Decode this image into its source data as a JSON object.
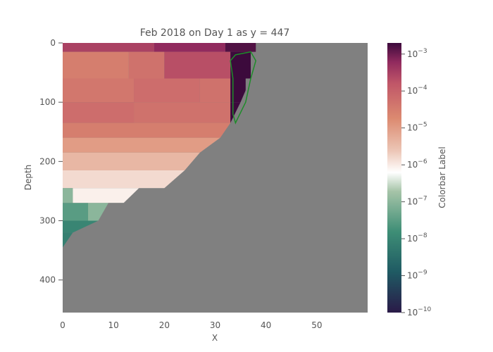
{
  "chart_data": {
    "type": "heatmap",
    "title": "Feb 2018 on Day 1 as y = 447",
    "xlabel": "X",
    "ylabel": "Depth",
    "xlim": [
      0,
      60
    ],
    "ylim": [
      455,
      0
    ],
    "x_ticks": [
      "0",
      "10",
      "20",
      "30",
      "40",
      "50"
    ],
    "y_ticks": [
      "0",
      "100",
      "200",
      "300",
      "400"
    ],
    "colorbar": {
      "label": "Colorbar Label",
      "scale": "log",
      "range": [
        1e-10,
        0.002
      ],
      "tick_exponents": [
        "-3",
        "-4",
        "-5",
        "-6",
        "-7",
        "-8",
        "-9",
        "-10"
      ],
      "tick_base": "10"
    },
    "land_color": "#808080",
    "contour_color": "#1e8c2a",
    "layers": [
      {
        "depth": [
          0,
          15
        ],
        "values": [
          {
            "x": [
              0,
              18
            ],
            "v": 0.0003
          },
          {
            "x": [
              18,
              32
            ],
            "v": 0.0006
          },
          {
            "x": [
              32,
              38
            ],
            "v": 0.0015
          }
        ]
      },
      {
        "depth": [
          15,
          60
        ],
        "values": [
          {
            "x": [
              0,
              13
            ],
            "v": 3e-05
          },
          {
            "x": [
              13,
              20
            ],
            "v": 5e-05
          },
          {
            "x": [
              20,
              33
            ],
            "v": 0.0002
          },
          {
            "x": [
              33,
              37
            ],
            "v": 0.002
          }
        ]
      },
      {
        "depth": [
          60,
          100
        ],
        "values": [
          {
            "x": [
              0,
              14
            ],
            "v": 4e-05
          },
          {
            "x": [
              14,
              27
            ],
            "v": 6e-05
          },
          {
            "x": [
              27,
              33
            ],
            "v": 5e-05
          },
          {
            "x": [
              33,
              36
            ],
            "v": 0.002
          }
        ]
      },
      {
        "depth": [
          100,
          135
        ],
        "values": [
          {
            "x": [
              0,
              14
            ],
            "v": 6e-05
          },
          {
            "x": [
              14,
              33
            ],
            "v": 5e-05
          },
          {
            "x": [
              33,
              35
            ],
            "v": 0.002
          }
        ]
      },
      {
        "depth": [
          135,
          160
        ],
        "values": [
          {
            "x": [
              0,
              33
            ],
            "v": 3e-05
          }
        ]
      },
      {
        "depth": [
          160,
          185
        ],
        "values": [
          {
            "x": [
              0,
              31
            ],
            "v": 1e-05
          }
        ]
      },
      {
        "depth": [
          185,
          215
        ],
        "values": [
          {
            "x": [
              0,
              27
            ],
            "v": 4e-06
          }
        ]
      },
      {
        "depth": [
          215,
          245
        ],
        "values": [
          {
            "x": [
              0,
              24
            ],
            "v": 1.5e-06
          }
        ]
      },
      {
        "depth": [
          245,
          270
        ],
        "values": [
          {
            "x": [
              0,
              2
            ],
            "v": 1e-07
          },
          {
            "x": [
              2,
              20
            ],
            "v": 9e-07
          }
        ]
      },
      {
        "depth": [
          270,
          300
        ],
        "values": [
          {
            "x": [
              0,
              5
            ],
            "v": 3e-08
          },
          {
            "x": [
              5,
              9
            ],
            "v": 1e-07
          }
        ]
      },
      {
        "depth": [
          300,
          320
        ],
        "values": [
          {
            "x": [
              0,
              7
            ],
            "v": 1e-08
          }
        ]
      },
      {
        "depth": [
          320,
          345
        ],
        "values": [
          {
            "x": [
              0,
              2
            ],
            "v": 8e-09
          }
        ]
      }
    ],
    "seafloor": [
      {
        "x": 0,
        "depth": 345
      },
      {
        "x": 2,
        "depth": 320
      },
      {
        "x": 7,
        "depth": 300
      },
      {
        "x": 9,
        "depth": 270
      },
      {
        "x": 12,
        "depth": 270
      },
      {
        "x": 15,
        "depth": 245
      },
      {
        "x": 20,
        "depth": 245
      },
      {
        "x": 24,
        "depth": 215
      },
      {
        "x": 27,
        "depth": 185
      },
      {
        "x": 31,
        "depth": 160
      },
      {
        "x": 33,
        "depth": 135
      },
      {
        "x": 35,
        "depth": 100
      },
      {
        "x": 37,
        "depth": 60
      },
      {
        "x": 38,
        "depth": 15
      },
      {
        "x": 42,
        "depth": 5
      },
      {
        "x": 50,
        "depth": 0
      },
      {
        "x": 60,
        "depth": 0
      }
    ]
  }
}
